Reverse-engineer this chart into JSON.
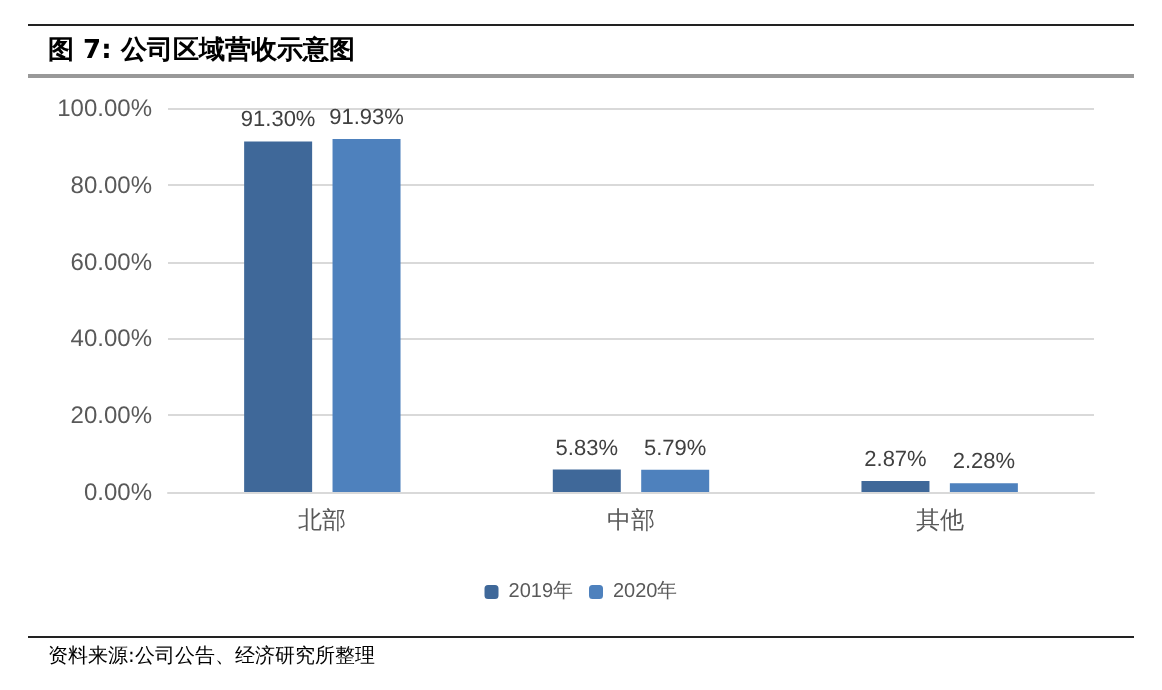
{
  "chart_data": {
    "type": "bar",
    "title": "图 7: 公司区域营收示意图",
    "annotations": [
      "资料来源:公司公告、经济研究所整理"
    ],
    "categories": [
      "北部",
      "中部",
      "其他"
    ],
    "series": [
      {
        "name": "2019年",
        "color": "#3f6899",
        "values": [
          91.3,
          5.83,
          2.87
        ],
        "value_labels": [
          "91.30%",
          "5.83%",
          "2.87%"
        ]
      },
      {
        "name": "2020年",
        "color": "#4e81bd",
        "values": [
          91.93,
          5.79,
          2.28
        ],
        "value_labels": [
          "91.93%",
          "5.79%",
          "2.28%"
        ]
      }
    ],
    "ylim": [
      0,
      100
    ],
    "yticks": [
      {
        "value": 0,
        "label": "0.00%"
      },
      {
        "value": 20,
        "label": "20.00%"
      },
      {
        "value": 40,
        "label": "40.00%"
      },
      {
        "value": 60,
        "label": "60.00%"
      },
      {
        "value": 80,
        "label": "80.00%"
      },
      {
        "value": 100,
        "label": "100.00%"
      }
    ],
    "grid": "y",
    "legend": "bottom"
  }
}
